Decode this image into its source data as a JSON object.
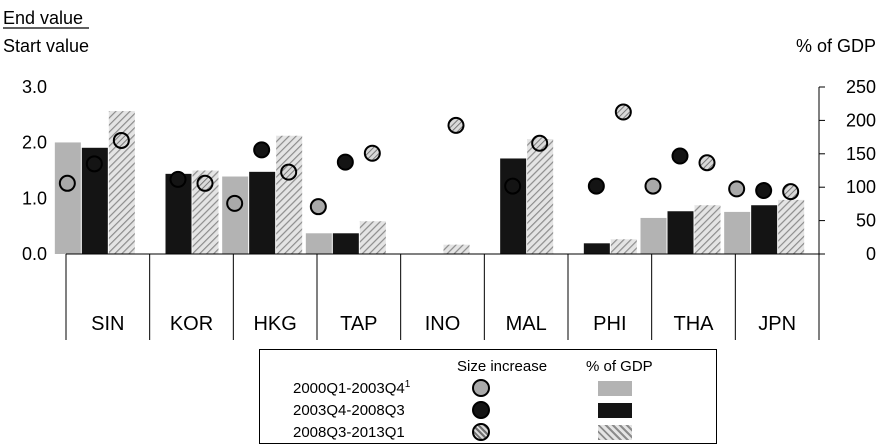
{
  "chart_data": {
    "type": "bar",
    "title": "",
    "left_axis_title_top": "End value",
    "left_axis_title_bottom": "Start value",
    "right_axis_title": "% of GDP",
    "categories": [
      "SIN",
      "KOR",
      "HKG",
      "TAP",
      "INO",
      "MAL",
      "PHI",
      "THA",
      "JPN"
    ],
    "left_axis": {
      "ylim": [
        0,
        3.0
      ],
      "ticks": [
        "0.0",
        "1.0",
        "2.0",
        "3.0"
      ],
      "values": [
        0,
        1.0,
        2.0,
        3.0
      ]
    },
    "right_axis": {
      "ylim": [
        0,
        250
      ],
      "ticks": [
        "0",
        "50",
        "100",
        "150",
        "200",
        "250"
      ],
      "values": [
        0,
        50,
        100,
        150,
        200,
        250
      ]
    },
    "bars_series": [
      {
        "name": "2000Q1-2003Q4",
        "color": "#b3b3b3",
        "pattern": "solid",
        "values": [
          167,
          null,
          116,
          31,
          null,
          null,
          null,
          54,
          63
        ]
      },
      {
        "name": "2003Q4-2008Q3",
        "color": "#141414",
        "pattern": "solid",
        "values": [
          159,
          120,
          123,
          31,
          null,
          143,
          16,
          64,
          73
        ]
      },
      {
        "name": "2008Q3-2013Q1",
        "color": "#9a9a9a",
        "pattern": "hatched",
        "values": [
          214,
          125,
          177,
          49,
          14,
          172,
          22,
          73,
          81
        ]
      }
    ],
    "points_series": [
      {
        "name": "2000Q1-2003Q4",
        "fill": "#a9a9a9",
        "values": [
          1.27,
          null,
          0.91,
          0.85,
          null,
          null,
          null,
          1.22,
          1.17
        ]
      },
      {
        "name": "2003Q4-2008Q3",
        "fill": "#141414",
        "values": [
          1.62,
          1.34,
          1.87,
          1.65,
          null,
          1.22,
          1.22,
          1.76,
          1.14
        ]
      },
      {
        "name": "2008Q3-2013Q1",
        "fill": "hatched",
        "values": [
          2.04,
          1.27,
          1.47,
          1.81,
          2.31,
          1.99,
          2.55,
          1.64,
          1.12
        ]
      }
    ],
    "legend": {
      "placement": "bottom",
      "col_points": "Size increase",
      "col_bars": "% of GDP",
      "rows": [
        {
          "label": "2000Q1-2003Q4",
          "sup": "1"
        },
        {
          "label": "2003Q4-2008Q3",
          "sup": ""
        },
        {
          "label": "2008Q3-2013Q1",
          "sup": ""
        }
      ]
    }
  }
}
